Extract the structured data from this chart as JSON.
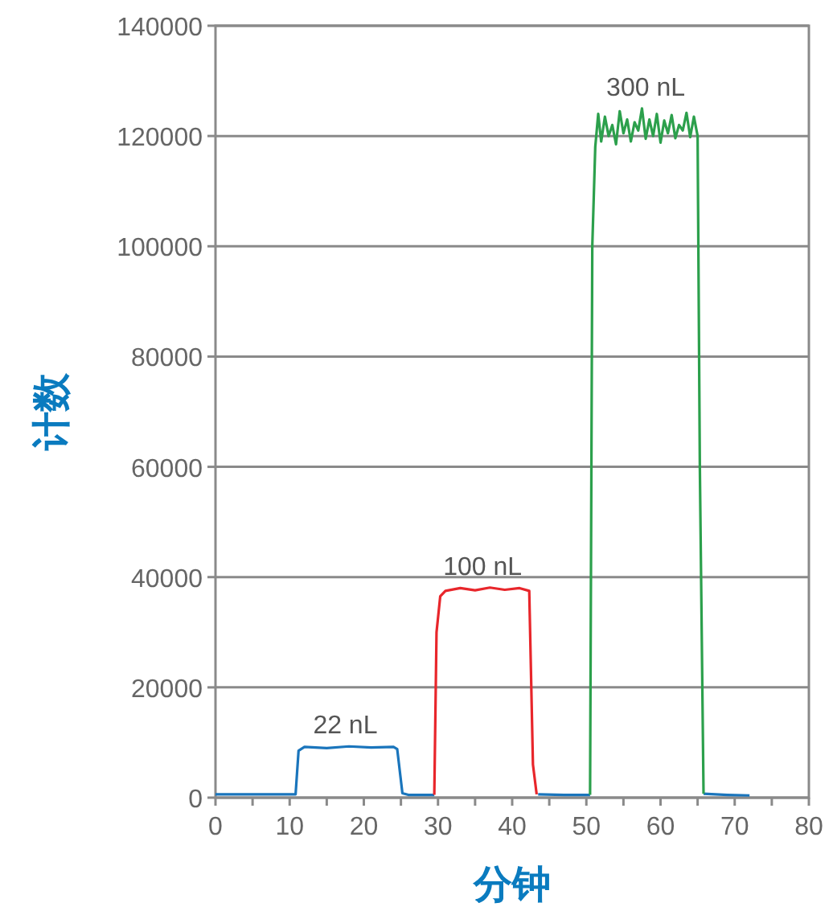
{
  "chart_data": {
    "type": "line",
    "xlabel": "分钟",
    "ylabel": "计数",
    "xlim": [
      0,
      80
    ],
    "ylim": [
      0,
      140000
    ],
    "xticks": [
      0,
      {
        "value": 5,
        "label": null
      },
      10,
      {
        "value": 15,
        "label": null
      },
      20,
      {
        "value": 25,
        "label": null
      },
      30,
      {
        "value": 35,
        "label": null
      },
      40,
      {
        "value": 45,
        "label": null
      },
      50,
      {
        "value": 55,
        "label": null
      },
      60,
      {
        "value": 65,
        "label": null
      },
      70,
      {
        "value": 75,
        "label": null
      },
      80
    ],
    "yticks": [
      0,
      20000,
      40000,
      60000,
      80000,
      100000,
      120000,
      140000
    ],
    "grid": "y",
    "series": [
      {
        "color": "#1a75bc",
        "x": [
          0,
          5,
          10.8,
          11.2,
          12,
          15,
          18,
          21,
          24,
          24.5,
          25.2,
          26,
          29.5
        ],
        "values": [
          600,
          600,
          600,
          8500,
          9200,
          9000,
          9300,
          9100,
          9200,
          8800,
          800,
          500,
          500
        ]
      },
      {
        "color": "#1a75bc",
        "x": [
          43.5,
          47,
          50.5
        ],
        "values": [
          600,
          500,
          500
        ]
      },
      {
        "color": "#1a75bc",
        "x": [
          65.8,
          69,
          72
        ],
        "values": [
          700,
          500,
          400
        ]
      },
      {
        "color": "#e8262b",
        "x": [
          29.5,
          29.8,
          30.3,
          31,
          33,
          35,
          37,
          39,
          41,
          42.3,
          42.8,
          43.3
        ],
        "values": [
          500,
          30000,
          36500,
          37500,
          38000,
          37600,
          38100,
          37700,
          38000,
          37500,
          6000,
          600
        ]
      },
      {
        "color": "#2ca04c",
        "x": [
          50.5,
          50.8,
          51.2,
          51.6,
          52,
          52.5,
          53,
          53.5,
          54,
          54.5,
          55,
          55.5,
          56,
          56.5,
          57,
          57.5,
          58,
          58.5,
          59,
          59.5,
          60,
          60.5,
          61,
          61.5,
          62,
          62.5,
          63,
          63.5,
          64,
          64.5,
          65,
          65.3,
          65.8
        ],
        "values": [
          500,
          100000,
          118000,
          124000,
          119000,
          123500,
          120000,
          122000,
          118500,
          124500,
          120500,
          123000,
          119000,
          122500,
          121000,
          125000,
          119500,
          123000,
          120000,
          124000,
          118800,
          122800,
          120500,
          123800,
          119600,
          122000,
          121000,
          124200,
          119800,
          123500,
          120000,
          60000,
          700
        ]
      }
    ],
    "annotations": [
      {
        "text": "22 nL",
        "x": 17.5,
        "y": 9300
      },
      {
        "text": "100 nL",
        "x": 36,
        "y": 38100
      },
      {
        "text": "300 nL",
        "x": 58,
        "y": 125000
      }
    ]
  }
}
